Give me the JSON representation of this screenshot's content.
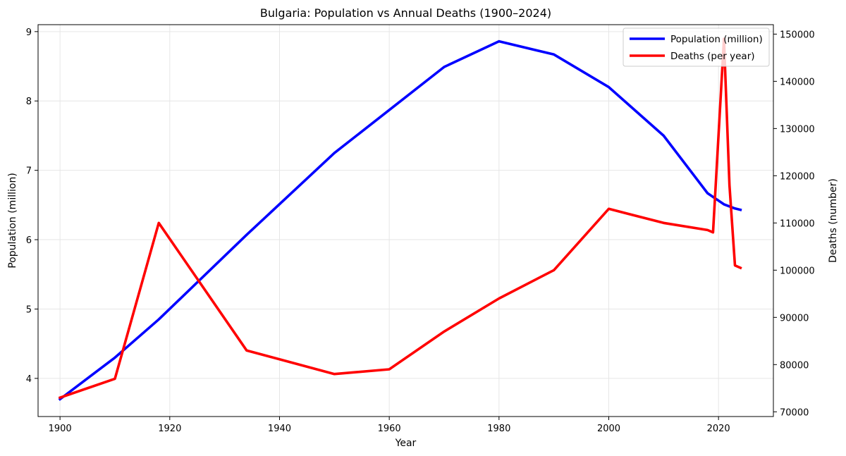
{
  "chart_data": {
    "type": "line",
    "title": "Bulgaria: Population vs Annual Deaths (1900–2024)",
    "xlabel": "Year",
    "ylabel_left": "Population (million)",
    "ylabel_right": "Deaths (number)",
    "xlim": [
      1896,
      2030
    ],
    "ylim_left": [
      3.45,
      9.1
    ],
    "ylim_right": [
      69000,
      152000
    ],
    "xticks": [
      1900,
      1920,
      1940,
      1960,
      1980,
      2000,
      2020
    ],
    "yticks_left": [
      4,
      5,
      6,
      7,
      8,
      9
    ],
    "yticks_right": [
      70000,
      80000,
      90000,
      100000,
      110000,
      120000,
      130000,
      140000,
      150000
    ],
    "grid": true,
    "legend_position": "top-right",
    "series": [
      {
        "name": "Population (million)",
        "axis": "left",
        "color": "#0000ff",
        "x": [
          1900,
          1910,
          1918,
          1934,
          1950,
          1970,
          1980,
          1990,
          2000,
          2010,
          2018,
          2021,
          2023,
          2024
        ],
        "y": [
          3.7,
          4.3,
          4.85,
          6.07,
          7.25,
          8.49,
          8.86,
          8.67,
          8.2,
          7.5,
          6.67,
          6.51,
          6.45,
          6.43
        ]
      },
      {
        "name": "Deaths (per year)",
        "axis": "right",
        "color": "#ff0000",
        "x": [
          1900,
          1910,
          1918,
          1934,
          1950,
          1960,
          1970,
          1980,
          1990,
          2000,
          2010,
          2018,
          2019,
          2021,
          2022,
          2023,
          2024
        ],
        "y": [
          73000,
          77000,
          110000,
          83000,
          78000,
          79000,
          87000,
          94000,
          100000,
          113000,
          110000,
          108500,
          108000,
          149000,
          118000,
          101000,
          100500
        ]
      }
    ]
  }
}
